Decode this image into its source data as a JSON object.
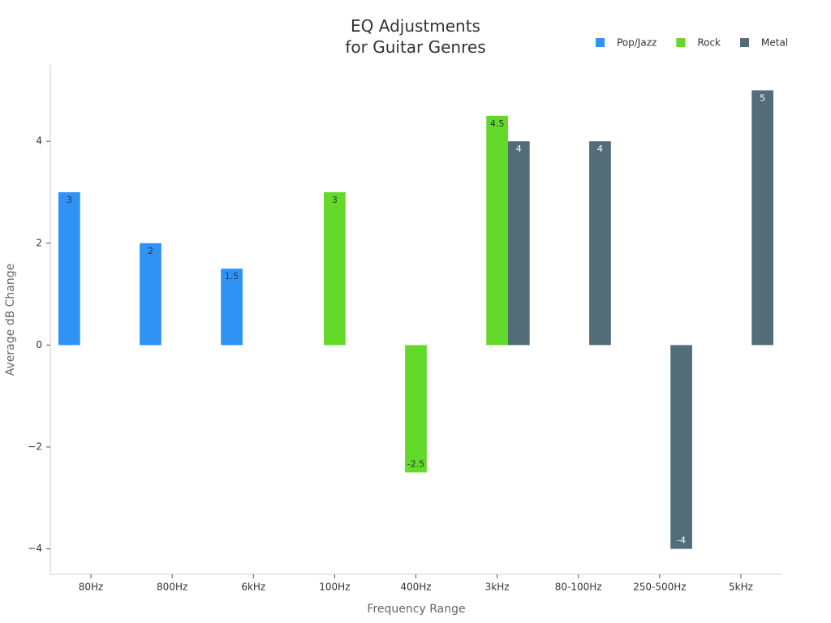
{
  "chart_data": {
    "type": "bar",
    "title": [
      "EQ Adjustments",
      "for Guitar Genres"
    ],
    "x_label": "Frequency Range",
    "y_label": "Average dB Change",
    "categories": [
      "80Hz",
      "800Hz",
      "6kHz",
      "100Hz",
      "400Hz",
      "3kHz",
      "80-100Hz",
      "250-500Hz",
      "5kHz"
    ],
    "series": [
      {
        "name": "Pop/Jazz",
        "color": "#2f92f5",
        "values": [
          3,
          2,
          1.5,
          null,
          null,
          null,
          null,
          null,
          null
        ]
      },
      {
        "name": "Rock",
        "color": "#63d929",
        "values": [
          null,
          null,
          null,
          3,
          -2.5,
          4.5,
          null,
          null,
          null
        ]
      },
      {
        "name": "Metal",
        "color": "#526c78",
        "values": [
          null,
          null,
          null,
          null,
          null,
          4,
          4,
          -4,
          5
        ]
      }
    ],
    "ylim": [
      -4.5,
      5.5
    ],
    "yticks": [
      {
        "value": -4,
        "label": "−4"
      },
      {
        "value": -2,
        "label": "−2"
      },
      0,
      2,
      4
    ],
    "grid": false,
    "legend": "upper right"
  }
}
